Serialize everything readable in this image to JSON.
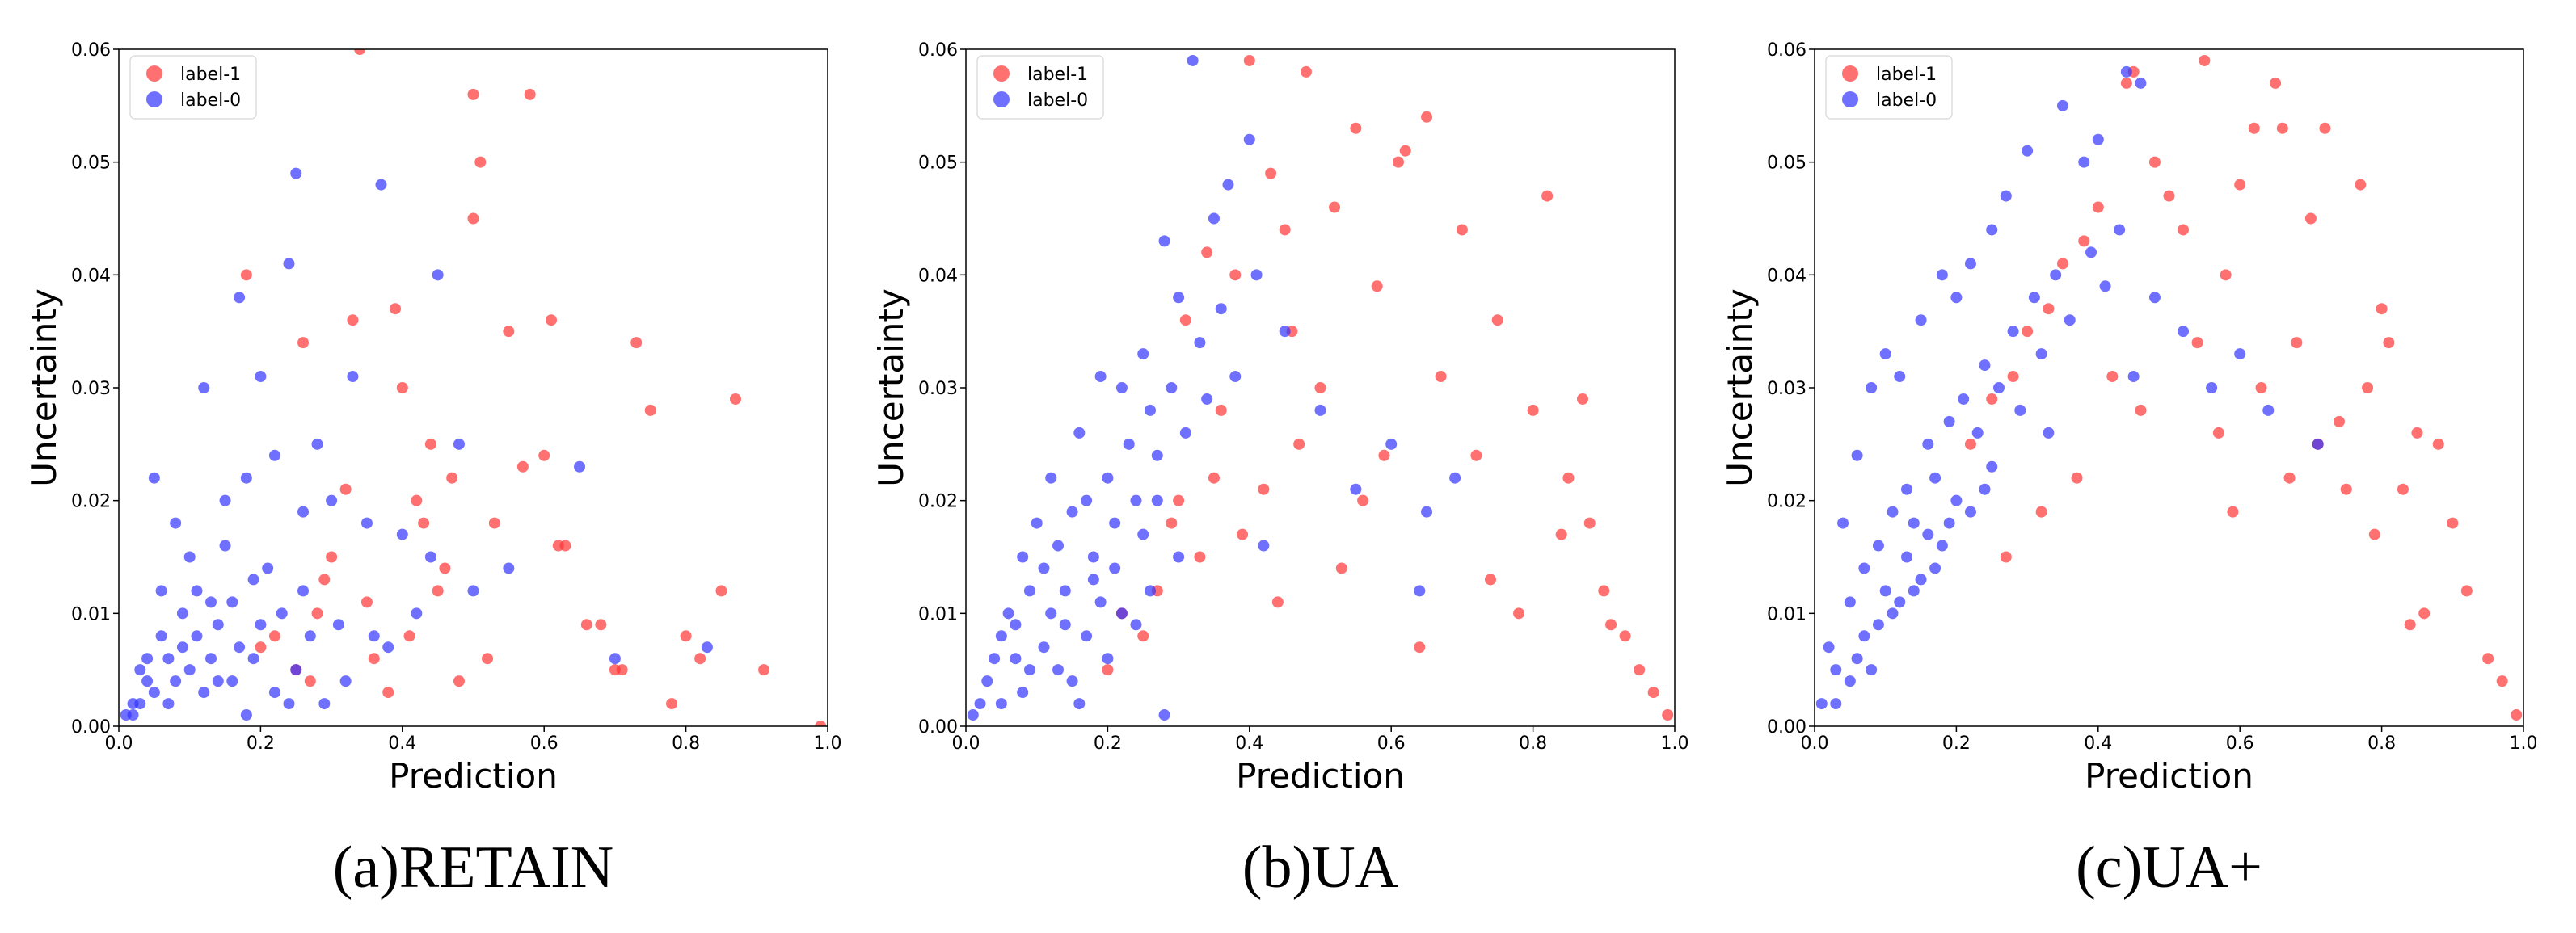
{
  "chart_data": [
    {
      "type": "scatter",
      "caption": "(a)RETAIN",
      "xlabel": "Prediction",
      "ylabel": "Uncertainty",
      "xlim": [
        0,
        1
      ],
      "xticks": [
        {
          "value": 0,
          "label": "0.0"
        },
        0.2,
        0.4,
        0.6,
        0.8,
        {
          "value": 1,
          "label": "1.0"
        }
      ],
      "ylim": [
        0,
        0.06
      ],
      "yticks": [
        {
          "value": 0,
          "label": "0.00"
        },
        0.01,
        0.02,
        0.03,
        0.04,
        0.05,
        0.06
      ],
      "legend": "upper left",
      "series": [
        {
          "name": "label-1",
          "color": "#ff3333",
          "x": [
            0.34,
            0.5,
            0.58,
            0.51,
            0.5,
            0.18,
            0.33,
            0.39,
            0.4,
            0.26,
            0.55,
            0.61,
            0.73,
            0.87,
            0.44,
            0.47,
            0.62,
            0.57,
            0.63,
            0.7,
            0.75,
            0.8,
            0.85,
            0.91,
            0.99,
            0.66,
            0.71,
            0.78,
            0.82,
            0.53,
            0.45,
            0.3,
            0.28,
            0.22,
            0.36,
            0.42,
            0.48,
            0.52,
            0.38,
            0.25,
            0.2,
            0.32,
            0.29,
            0.43,
            0.35,
            0.27,
            0.41,
            0.46,
            0.6,
            0.68
          ],
          "values": [
            0.06,
            0.056,
            0.056,
            0.05,
            0.045,
            0.04,
            0.036,
            0.037,
            0.03,
            0.034,
            0.035,
            0.036,
            0.034,
            0.029,
            0.025,
            0.022,
            0.016,
            0.023,
            0.016,
            0.005,
            0.028,
            0.008,
            0.012,
            0.005,
            0.0,
            0.009,
            0.005,
            0.002,
            0.006,
            0.018,
            0.012,
            0.015,
            0.01,
            0.008,
            0.006,
            0.02,
            0.004,
            0.006,
            0.003,
            0.005,
            0.007,
            0.021,
            0.013,
            0.018,
            0.011,
            0.004,
            0.008,
            0.014,
            0.024,
            0.009
          ]
        },
        {
          "name": "label-0",
          "color": "#3333ff",
          "x": [
            0.25,
            0.37,
            0.24,
            0.17,
            0.45,
            0.12,
            0.2,
            0.33,
            0.05,
            0.08,
            0.1,
            0.15,
            0.18,
            0.22,
            0.28,
            0.3,
            0.35,
            0.4,
            0.03,
            0.06,
            0.09,
            0.11,
            0.13,
            0.14,
            0.16,
            0.19,
            0.21,
            0.23,
            0.26,
            0.27,
            0.31,
            0.02,
            0.04,
            0.07,
            0.12,
            0.17,
            0.25,
            0.32,
            0.38,
            0.42,
            0.5,
            0.55,
            0.65,
            0.7,
            0.83,
            0.01,
            0.03,
            0.05,
            0.08,
            0.1,
            0.14,
            0.19,
            0.22,
            0.29,
            0.36,
            0.44,
            0.48,
            0.06,
            0.09,
            0.15,
            0.2,
            0.24,
            0.02,
            0.11,
            0.16,
            0.07,
            0.13,
            0.18,
            0.04,
            0.26
          ],
          "values": [
            0.049,
            0.048,
            0.041,
            0.038,
            0.04,
            0.03,
            0.031,
            0.031,
            0.022,
            0.018,
            0.015,
            0.02,
            0.022,
            0.024,
            0.025,
            0.02,
            0.018,
            0.017,
            0.005,
            0.008,
            0.01,
            0.012,
            0.006,
            0.009,
            0.011,
            0.013,
            0.014,
            0.01,
            0.012,
            0.008,
            0.009,
            0.002,
            0.004,
            0.006,
            0.003,
            0.007,
            0.005,
            0.004,
            0.007,
            0.01,
            0.012,
            0.014,
            0.023,
            0.006,
            0.007,
            0.001,
            0.002,
            0.003,
            0.004,
            0.005,
            0.004,
            0.006,
            0.003,
            0.002,
            0.008,
            0.015,
            0.025,
            0.012,
            0.007,
            0.016,
            0.009,
            0.002,
            0.001,
            0.008,
            0.004,
            0.002,
            0.011,
            0.001,
            0.006,
            0.019
          ]
        }
      ]
    },
    {
      "type": "scatter",
      "caption": "(b)UA",
      "xlabel": "Prediction",
      "ylabel": "Uncertainty",
      "xlim": [
        0,
        1
      ],
      "xticks": [
        {
          "value": 0,
          "label": "0.0"
        },
        0.2,
        0.4,
        0.6,
        0.8,
        {
          "value": 1,
          "label": "1.0"
        }
      ],
      "ylim": [
        0,
        0.06
      ],
      "yticks": [
        {
          "value": 0,
          "label": "0.00"
        },
        0.01,
        0.02,
        0.03,
        0.04,
        0.05,
        0.06
      ],
      "legend": "upper left",
      "series": [
        {
          "name": "label-1",
          "color": "#ff3333",
          "x": [
            0.48,
            0.4,
            0.55,
            0.62,
            0.61,
            0.65,
            0.52,
            0.43,
            0.38,
            0.45,
            0.34,
            0.31,
            0.58,
            0.7,
            0.75,
            0.82,
            0.87,
            0.8,
            0.85,
            0.9,
            0.93,
            0.95,
            0.97,
            0.99,
            0.88,
            0.74,
            0.64,
            0.56,
            0.5,
            0.47,
            0.42,
            0.36,
            0.33,
            0.29,
            0.27,
            0.25,
            0.22,
            0.2,
            0.3,
            0.39,
            0.44,
            0.53,
            0.59,
            0.67,
            0.72,
            0.78,
            0.84,
            0.91,
            0.46,
            0.35
          ],
          "values": [
            0.058,
            0.059,
            0.053,
            0.051,
            0.05,
            0.054,
            0.046,
            0.049,
            0.04,
            0.044,
            0.042,
            0.036,
            0.039,
            0.044,
            0.036,
            0.047,
            0.029,
            0.028,
            0.022,
            0.012,
            0.008,
            0.005,
            0.003,
            0.001,
            0.018,
            0.013,
            0.007,
            0.02,
            0.03,
            0.025,
            0.021,
            0.028,
            0.015,
            0.018,
            0.012,
            0.008,
            0.01,
            0.005,
            0.02,
            0.017,
            0.011,
            0.014,
            0.024,
            0.031,
            0.024,
            0.01,
            0.017,
            0.009,
            0.035,
            0.022
          ]
        },
        {
          "name": "label-0",
          "color": "#3333ff",
          "x": [
            0.32,
            0.4,
            0.37,
            0.35,
            0.28,
            0.3,
            0.25,
            0.22,
            0.19,
            0.16,
            0.12,
            0.1,
            0.08,
            0.06,
            0.04,
            0.02,
            0.01,
            0.03,
            0.05,
            0.07,
            0.09,
            0.11,
            0.13,
            0.14,
            0.15,
            0.17,
            0.18,
            0.2,
            0.21,
            0.23,
            0.24,
            0.26,
            0.27,
            0.29,
            0.31,
            0.33,
            0.34,
            0.36,
            0.38,
            0.41,
            0.45,
            0.5,
            0.55,
            0.6,
            0.65,
            0.69,
            0.13,
            0.17,
            0.22,
            0.26,
            0.3,
            0.08,
            0.11,
            0.19,
            0.24,
            0.05,
            0.15,
            0.2,
            0.12,
            0.28,
            0.42,
            0.64,
            0.09,
            0.18,
            0.25,
            0.07,
            0.14,
            0.21,
            0.16,
            0.27
          ],
          "values": [
            0.059,
            0.052,
            0.048,
            0.045,
            0.043,
            0.038,
            0.033,
            0.03,
            0.031,
            0.026,
            0.022,
            0.018,
            0.015,
            0.01,
            0.006,
            0.002,
            0.001,
            0.004,
            0.008,
            0.009,
            0.012,
            0.014,
            0.016,
            0.012,
            0.019,
            0.02,
            0.015,
            0.022,
            0.018,
            0.025,
            0.02,
            0.028,
            0.024,
            0.03,
            0.026,
            0.034,
            0.029,
            0.037,
            0.031,
            0.04,
            0.035,
            0.028,
            0.021,
            0.025,
            0.019,
            0.022,
            0.005,
            0.008,
            0.01,
            0.012,
            0.015,
            0.003,
            0.007,
            0.011,
            0.009,
            0.002,
            0.004,
            0.006,
            0.01,
            0.001,
            0.016,
            0.012,
            0.005,
            0.013,
            0.017,
            0.006,
            0.009,
            0.014,
            0.002,
            0.02
          ]
        }
      ]
    },
    {
      "type": "scatter",
      "caption": "(c)UA+",
      "xlabel": "Prediction",
      "ylabel": "Uncertainty",
      "xlim": [
        0,
        1
      ],
      "xticks": [
        {
          "value": 0,
          "label": "0.0"
        },
        0.2,
        0.4,
        0.6,
        0.8,
        {
          "value": 1,
          "label": "1.0"
        }
      ],
      "ylim": [
        0,
        0.06
      ],
      "yticks": [
        {
          "value": 0,
          "label": "0.00"
        },
        0.01,
        0.02,
        0.03,
        0.04,
        0.05,
        0.06
      ],
      "legend": "upper left",
      "series": [
        {
          "name": "label-1",
          "color": "#ff3333",
          "x": [
            0.55,
            0.45,
            0.44,
            0.65,
            0.66,
            0.62,
            0.6,
            0.7,
            0.72,
            0.77,
            0.8,
            0.81,
            0.83,
            0.85,
            0.88,
            0.9,
            0.92,
            0.95,
            0.97,
            0.99,
            0.86,
            0.78,
            0.74,
            0.68,
            0.58,
            0.52,
            0.5,
            0.48,
            0.4,
            0.38,
            0.35,
            0.33,
            0.3,
            0.28,
            0.25,
            0.22,
            0.42,
            0.46,
            0.54,
            0.57,
            0.63,
            0.67,
            0.71,
            0.75,
            0.79,
            0.84,
            0.59,
            0.37,
            0.32,
            0.27
          ],
          "values": [
            0.059,
            0.058,
            0.057,
            0.057,
            0.053,
            0.053,
            0.048,
            0.045,
            0.053,
            0.048,
            0.037,
            0.034,
            0.021,
            0.026,
            0.025,
            0.018,
            0.012,
            0.006,
            0.004,
            0.001,
            0.01,
            0.03,
            0.027,
            0.034,
            0.04,
            0.044,
            0.047,
            0.05,
            0.046,
            0.043,
            0.041,
            0.037,
            0.035,
            0.031,
            0.029,
            0.025,
            0.031,
            0.028,
            0.034,
            0.026,
            0.03,
            0.022,
            0.025,
            0.021,
            0.017,
            0.009,
            0.019,
            0.022,
            0.019,
            0.015
          ]
        },
        {
          "name": "label-0",
          "color": "#3333ff",
          "x": [
            0.44,
            0.46,
            0.4,
            0.38,
            0.35,
            0.3,
            0.27,
            0.25,
            0.22,
            0.2,
            0.18,
            0.15,
            0.12,
            0.1,
            0.08,
            0.06,
            0.04,
            0.02,
            0.01,
            0.03,
            0.05,
            0.07,
            0.09,
            0.11,
            0.13,
            0.14,
            0.16,
            0.17,
            0.19,
            0.21,
            0.23,
            0.24,
            0.26,
            0.28,
            0.29,
            0.31,
            0.32,
            0.34,
            0.36,
            0.39,
            0.41,
            0.43,
            0.48,
            0.52,
            0.56,
            0.6,
            0.64,
            0.71,
            0.07,
            0.1,
            0.13,
            0.16,
            0.2,
            0.25,
            0.05,
            0.09,
            0.12,
            0.15,
            0.18,
            0.22,
            0.03,
            0.06,
            0.08,
            0.11,
            0.14,
            0.17,
            0.19,
            0.24,
            0.33,
            0.45
          ],
          "values": [
            0.058,
            0.057,
            0.052,
            0.05,
            0.055,
            0.051,
            0.047,
            0.044,
            0.041,
            0.038,
            0.04,
            0.036,
            0.031,
            0.033,
            0.03,
            0.024,
            0.018,
            0.007,
            0.002,
            0.005,
            0.011,
            0.014,
            0.016,
            0.019,
            0.021,
            0.018,
            0.025,
            0.022,
            0.027,
            0.029,
            0.026,
            0.032,
            0.03,
            0.035,
            0.028,
            0.038,
            0.033,
            0.04,
            0.036,
            0.042,
            0.039,
            0.044,
            0.038,
            0.035,
            0.03,
            0.033,
            0.028,
            0.025,
            0.008,
            0.012,
            0.015,
            0.017,
            0.02,
            0.023,
            0.004,
            0.009,
            0.011,
            0.013,
            0.016,
            0.019,
            0.002,
            0.006,
            0.005,
            0.01,
            0.012,
            0.014,
            0.018,
            0.021,
            0.026,
            0.031
          ]
        }
      ]
    }
  ]
}
